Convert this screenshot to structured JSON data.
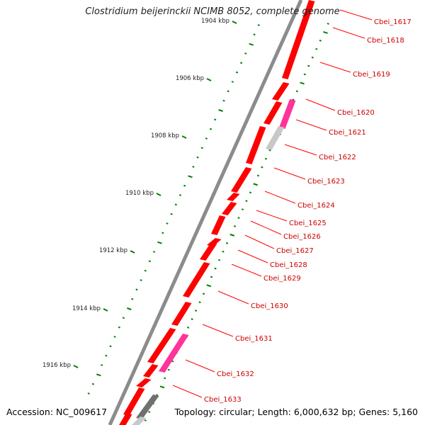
{
  "title": "Clostridium beijerinckii NCIMB 8052, complete genome",
  "footer": {
    "accession": "Accession: NC_009617",
    "topology": "Topology: circular; Length: 6,000,632 bp; Genes: 5,160"
  },
  "colors": {
    "gene": "#ff0000",
    "gene_highlight": "#ff3399",
    "gene_gray": "#c8c8c8",
    "gene_dark": "#707070",
    "backbone": "#8c8c8c",
    "dots": "#008000",
    "label": "#cc0000"
  },
  "kbp_labels": [
    "1904 kbp",
    "1906 kbp",
    "1908 kbp",
    "1910 kbp",
    "1912 kbp",
    "1914 kbp",
    "1916 kbp"
  ],
  "gene_labels": [
    "Cbei_1617",
    "Cbei_1618",
    "Cbei_1619",
    "Cbei_1620",
    "Cbei_1621",
    "Cbei_1622",
    "Cbei_1623",
    "Cbei_1624",
    "Cbei_1625",
    "Cbei_1626",
    "Cbei_1627",
    "Cbei_1628",
    "Cbei_1629",
    "Cbei_1630",
    "Cbei_1631",
    "Cbei_1632",
    "Cbei_1633"
  ]
}
